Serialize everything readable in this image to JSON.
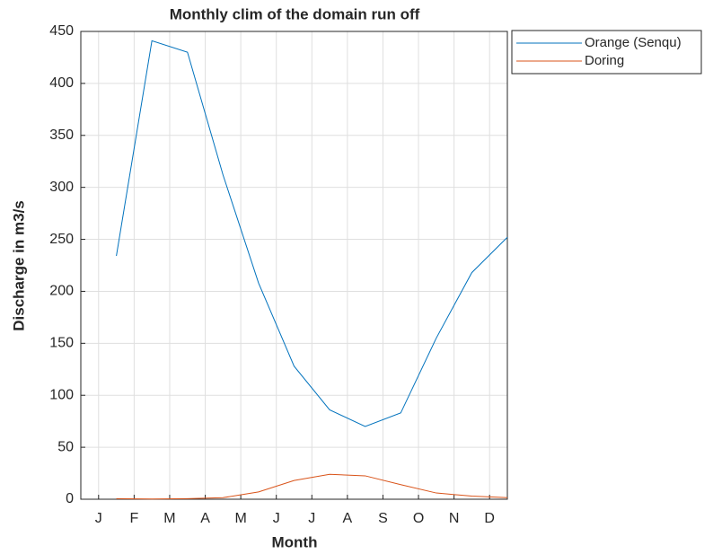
{
  "chart_data": {
    "type": "line",
    "title": "Monthly clim of the domain run off",
    "xlabel": "Month",
    "ylabel": "Discharge in m3/s",
    "x": [
      1.5,
      2.5,
      3.5,
      4.5,
      5.5,
      6.5,
      7.5,
      8.5,
      9.5,
      10.5,
      11.5,
      12.5
    ],
    "series": [
      {
        "name": "Orange (Senqu)",
        "color": "#0072BD",
        "values": [
          234,
          441,
          430,
          312,
          208,
          128,
          86,
          70,
          83,
          155,
          218,
          252
        ]
      },
      {
        "name": "Doring",
        "color": "#D95319",
        "values": [
          0.5,
          0.2,
          0.5,
          1.5,
          7,
          18,
          24,
          22.5,
          14,
          6,
          3,
          1.5
        ]
      }
    ],
    "xlim": [
      0.5,
      12.5
    ],
    "xticks": [
      {
        "value": 1,
        "label": "J"
      },
      {
        "value": 2,
        "label": "F"
      },
      {
        "value": 3,
        "label": "M"
      },
      {
        "value": 4,
        "label": "A"
      },
      {
        "value": 5,
        "label": "M"
      },
      {
        "value": 6,
        "label": "J"
      },
      {
        "value": 7,
        "label": "J"
      },
      {
        "value": 8,
        "label": "A"
      },
      {
        "value": 9,
        "label": "S"
      },
      {
        "value": 10,
        "label": "O"
      },
      {
        "value": 11,
        "label": "N"
      },
      {
        "value": 12,
        "label": "D"
      }
    ],
    "ylim": [
      0,
      450
    ],
    "yticks": [
      0,
      50,
      100,
      150,
      200,
      250,
      300,
      350,
      400,
      450
    ],
    "grid": true,
    "legend": "outside-northeast"
  }
}
